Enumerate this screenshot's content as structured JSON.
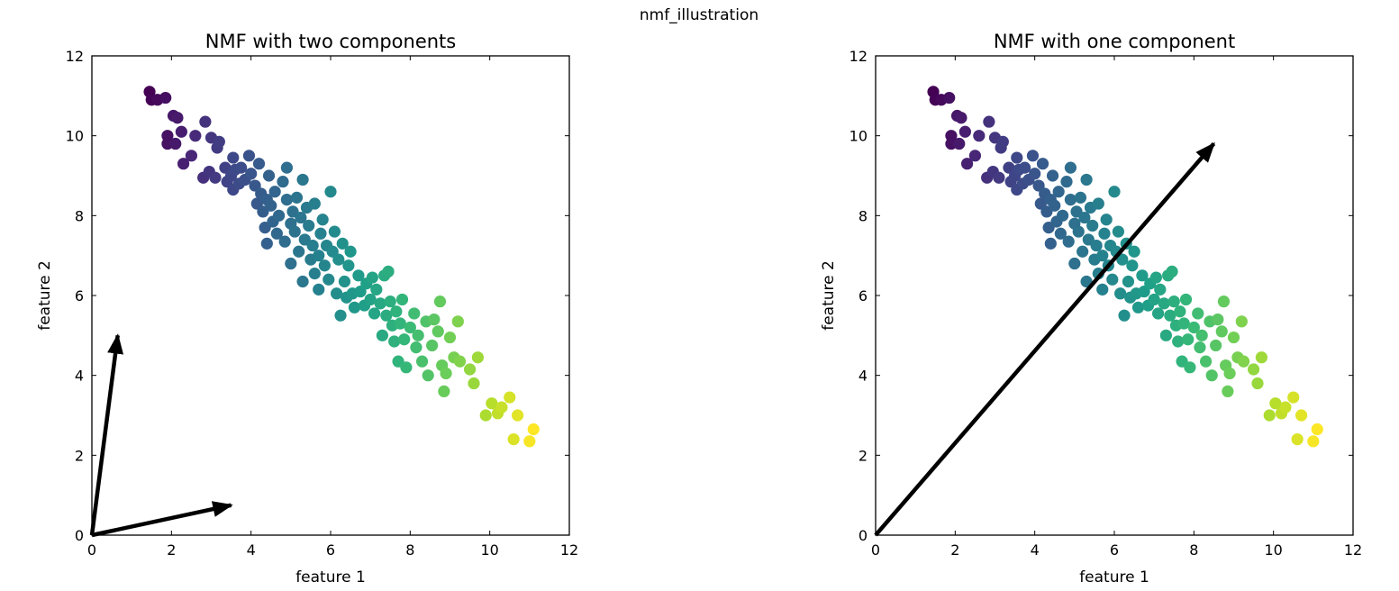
{
  "figure": {
    "suptitle": "nmf_illustration"
  },
  "chart_data": [
    {
      "type": "scatter",
      "title": "NMF with two components",
      "xlabel": "feature 1",
      "ylabel": "feature 2",
      "xlim": [
        0,
        12
      ],
      "ylim": [
        0,
        12
      ],
      "xticks": [
        "0",
        "2",
        "4",
        "6",
        "8",
        "10",
        "12"
      ],
      "yticks": [
        "0",
        "2",
        "4",
        "6",
        "8",
        "10",
        "12"
      ],
      "grid": false,
      "colormap": "viridis",
      "components": [
        {
          "x": [
            0,
            0.65
          ],
          "y": [
            0,
            5.0
          ]
        },
        {
          "x": [
            0,
            3.5
          ],
          "y": [
            0,
            0.75
          ]
        }
      ]
    },
    {
      "type": "scatter",
      "title": "NMF with one component",
      "xlabel": "feature 1",
      "ylabel": "feature 2",
      "xlim": [
        0,
        12
      ],
      "ylim": [
        0,
        12
      ],
      "xticks": [
        "0",
        "2",
        "4",
        "6",
        "8",
        "10",
        "12"
      ],
      "yticks": [
        "0",
        "2",
        "4",
        "6",
        "8",
        "10",
        "12"
      ],
      "grid": false,
      "colormap": "viridis",
      "components": [
        {
          "x": [
            0,
            8.5
          ],
          "y": [
            0,
            9.8
          ]
        }
      ]
    }
  ],
  "points": [
    [
      1.45,
      11.1
    ],
    [
      1.5,
      10.9
    ],
    [
      1.65,
      10.9
    ],
    [
      1.85,
      10.95
    ],
    [
      1.9,
      10.0
    ],
    [
      1.9,
      9.8
    ],
    [
      2.05,
      10.5
    ],
    [
      2.15,
      10.45
    ],
    [
      2.1,
      9.8
    ],
    [
      2.25,
      10.1
    ],
    [
      2.3,
      9.3
    ],
    [
      2.5,
      9.5
    ],
    [
      2.6,
      10.0
    ],
    [
      2.85,
      10.35
    ],
    [
      2.8,
      8.95
    ],
    [
      2.95,
      9.1
    ],
    [
      3.0,
      9.95
    ],
    [
      3.1,
      8.95
    ],
    [
      3.15,
      9.7
    ],
    [
      3.2,
      9.85
    ],
    [
      3.35,
      9.2
    ],
    [
      3.4,
      8.85
    ],
    [
      3.5,
      9.0
    ],
    [
      3.55,
      9.45
    ],
    [
      3.6,
      9.15
    ],
    [
      3.55,
      8.65
    ],
    [
      3.7,
      8.8
    ],
    [
      3.75,
      9.2
    ],
    [
      3.85,
      8.9
    ],
    [
      3.95,
      9.5
    ],
    [
      4.0,
      9.05
    ],
    [
      4.1,
      8.75
    ],
    [
      4.15,
      8.3
    ],
    [
      4.2,
      9.3
    ],
    [
      4.25,
      8.55
    ],
    [
      4.3,
      8.1
    ],
    [
      4.35,
      7.7
    ],
    [
      4.4,
      8.4
    ],
    [
      4.4,
      7.3
    ],
    [
      4.45,
      9.0
    ],
    [
      4.5,
      8.25
    ],
    [
      4.55,
      7.85
    ],
    [
      4.6,
      8.6
    ],
    [
      4.65,
      7.55
    ],
    [
      4.7,
      8.0
    ],
    [
      4.8,
      8.85
    ],
    [
      4.85,
      7.35
    ],
    [
      4.9,
      8.4
    ],
    [
      4.9,
      9.2
    ],
    [
      5.0,
      7.8
    ],
    [
      5.0,
      6.8
    ],
    [
      5.05,
      8.1
    ],
    [
      5.1,
      7.6
    ],
    [
      5.15,
      8.45
    ],
    [
      5.2,
      7.1
    ],
    [
      5.25,
      7.95
    ],
    [
      5.3,
      8.9
    ],
    [
      5.3,
      6.35
    ],
    [
      5.35,
      7.4
    ],
    [
      5.4,
      8.2
    ],
    [
      5.45,
      7.75
    ],
    [
      5.5,
      6.9
    ],
    [
      5.55,
      7.25
    ],
    [
      5.6,
      6.55
    ],
    [
      5.6,
      8.3
    ],
    [
      5.7,
      7.0
    ],
    [
      5.7,
      6.15
    ],
    [
      5.75,
      7.55
    ],
    [
      5.8,
      7.9
    ],
    [
      5.85,
      6.75
    ],
    [
      5.9,
      7.25
    ],
    [
      5.95,
      6.4
    ],
    [
      6.0,
      8.6
    ],
    [
      6.05,
      7.1
    ],
    [
      6.1,
      7.6
    ],
    [
      6.15,
      6.05
    ],
    [
      6.2,
      6.9
    ],
    [
      6.25,
      5.5
    ],
    [
      6.3,
      7.3
    ],
    [
      6.35,
      6.35
    ],
    [
      6.4,
      5.95
    ],
    [
      6.45,
      6.75
    ],
    [
      6.5,
      7.1
    ],
    [
      6.55,
      6.05
    ],
    [
      6.6,
      5.7
    ],
    [
      6.7,
      6.5
    ],
    [
      6.75,
      6.1
    ],
    [
      6.85,
      5.75
    ],
    [
      6.9,
      6.3
    ],
    [
      7.0,
      5.9
    ],
    [
      7.05,
      6.45
    ],
    [
      7.1,
      5.55
    ],
    [
      7.15,
      6.15
    ],
    [
      7.25,
      5.8
    ],
    [
      7.3,
      5.0
    ],
    [
      7.35,
      6.5
    ],
    [
      7.4,
      5.5
    ],
    [
      7.45,
      6.6
    ],
    [
      7.5,
      5.85
    ],
    [
      7.55,
      5.25
    ],
    [
      7.6,
      4.85
    ],
    [
      7.65,
      5.6
    ],
    [
      7.7,
      4.35
    ],
    [
      7.75,
      5.3
    ],
    [
      7.8,
      5.9
    ],
    [
      7.85,
      4.9
    ],
    [
      7.9,
      4.2
    ],
    [
      8.0,
      5.2
    ],
    [
      8.1,
      5.55
    ],
    [
      8.15,
      4.7
    ],
    [
      8.2,
      5.0
    ],
    [
      8.3,
      4.35
    ],
    [
      8.4,
      5.35
    ],
    [
      8.45,
      4.0
    ],
    [
      8.55,
      4.75
    ],
    [
      8.6,
      5.4
    ],
    [
      8.7,
      5.1
    ],
    [
      8.75,
      5.85
    ],
    [
      8.8,
      4.25
    ],
    [
      8.85,
      3.6
    ],
    [
      8.9,
      4.05
    ],
    [
      9.0,
      4.95
    ],
    [
      9.1,
      4.45
    ],
    [
      9.2,
      5.35
    ],
    [
      9.25,
      4.35
    ],
    [
      9.5,
      4.15
    ],
    [
      9.6,
      3.8
    ],
    [
      9.7,
      4.45
    ],
    [
      9.9,
      3.0
    ],
    [
      10.05,
      3.3
    ],
    [
      10.2,
      3.05
    ],
    [
      10.3,
      3.2
    ],
    [
      10.5,
      3.45
    ],
    [
      10.6,
      2.4
    ],
    [
      10.7,
      3.0
    ],
    [
      11.0,
      2.35
    ],
    [
      11.1,
      2.65
    ]
  ]
}
